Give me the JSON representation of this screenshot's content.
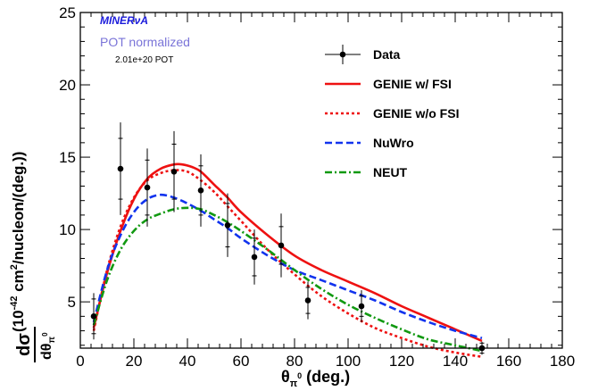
{
  "chart_data": {
    "type": "line",
    "xlabel": "θπ⁰ (deg.)",
    "xlabel_parts": {
      "theta": "θ",
      "sub": "π",
      "sup": "0",
      "rest": " (deg.)"
    },
    "ylabel_parts": {
      "frac_num": "dσ",
      "frac_den_theta": "dθ",
      "frac_den_sub": "π",
      "frac_den_sup": "0",
      "open": "(10",
      "exp": "-42",
      "mid": " cm",
      "sq": "2",
      "close": "/nucleon/(deg.))"
    },
    "xlim": [
      0,
      180
    ],
    "ylim": [
      1.8,
      25
    ],
    "x_ticks": [
      0,
      20,
      40,
      60,
      80,
      100,
      120,
      140,
      160,
      180
    ],
    "y_ticks": [
      5,
      10,
      15,
      20,
      25
    ],
    "grid": false,
    "legend_position": "top-right",
    "experiment": {
      "name": "MINERvA",
      "name_parts": {
        "a": "MINER",
        "b": "ν",
        "c": "A"
      },
      "pot_label": "POT normalized",
      "pot_value": "2.01e+20 POT",
      "name_color": "#1a1adb",
      "pot_label_color": "#7a74d8"
    },
    "data": {
      "name": "Data",
      "x": [
        5,
        15,
        25,
        35,
        45,
        55,
        65,
        75,
        85,
        105,
        150
      ],
      "y": [
        4.0,
        14.2,
        12.9,
        14.0,
        12.7,
        10.3,
        8.1,
        8.9,
        5.1,
        4.7,
        1.8
      ],
      "err_stat": [
        1.2,
        2.1,
        1.9,
        1.9,
        1.7,
        1.5,
        1.3,
        1.3,
        0.9,
        0.7,
        0.35
      ],
      "err_tot": [
        1.6,
        3.2,
        2.7,
        2.8,
        2.5,
        2.2,
        1.9,
        2.2,
        1.3,
        1.1,
        0.45
      ],
      "color": "#000000"
    },
    "series": [
      {
        "name": "GENIE w/ FSI",
        "color": "#ee1111",
        "dash": "solid",
        "x": [
          5,
          10,
          15,
          20,
          25,
          30,
          35,
          38,
          42,
          45,
          50,
          55,
          60,
          70,
          80,
          90,
          100,
          110,
          120,
          130,
          140,
          150
        ],
        "y": [
          3.2,
          7.0,
          9.9,
          12.1,
          13.5,
          14.2,
          14.5,
          14.5,
          14.3,
          14.0,
          13.1,
          12.2,
          11.2,
          9.6,
          8.2,
          7.2,
          6.4,
          5.6,
          4.7,
          3.9,
          3.1,
          2.3
        ]
      },
      {
        "name": "GENIE w/o FSI",
        "color": "#ee1111",
        "dash": "dotted",
        "x": [
          5,
          10,
          15,
          20,
          25,
          30,
          35,
          40,
          45,
          50,
          55,
          60,
          70,
          80,
          90,
          100,
          110,
          120,
          130,
          140,
          150
        ],
        "y": [
          3.0,
          7.2,
          10.2,
          12.2,
          13.4,
          13.9,
          14.1,
          14.0,
          13.4,
          12.6,
          11.6,
          10.6,
          8.6,
          6.9,
          5.4,
          4.2,
          3.2,
          2.5,
          1.9,
          1.5,
          1.2
        ]
      },
      {
        "name": "NuWro",
        "color": "#1133ee",
        "dash": "dashed",
        "x": [
          5,
          10,
          15,
          20,
          25,
          30,
          35,
          40,
          45,
          50,
          55,
          60,
          70,
          80,
          90,
          100,
          110,
          120,
          130,
          140,
          150
        ],
        "y": [
          3.6,
          7.2,
          9.6,
          11.2,
          12.1,
          12.4,
          12.2,
          11.8,
          11.3,
          10.7,
          10.1,
          9.4,
          8.2,
          7.2,
          6.5,
          5.8,
          5.1,
          4.3,
          3.6,
          3.0,
          2.5
        ]
      },
      {
        "name": "NEUT",
        "color": "#119911",
        "dash": "dashdot",
        "x": [
          5,
          10,
          15,
          20,
          25,
          30,
          35,
          40,
          45,
          50,
          55,
          60,
          70,
          80,
          90,
          100,
          110,
          120,
          130,
          140,
          150
        ],
        "y": [
          3.4,
          6.5,
          8.6,
          9.9,
          10.7,
          11.1,
          11.4,
          11.5,
          11.4,
          11.0,
          10.5,
          9.9,
          8.6,
          7.2,
          5.9,
          4.8,
          3.9,
          3.1,
          2.4,
          2.0,
          1.6
        ]
      }
    ]
  }
}
